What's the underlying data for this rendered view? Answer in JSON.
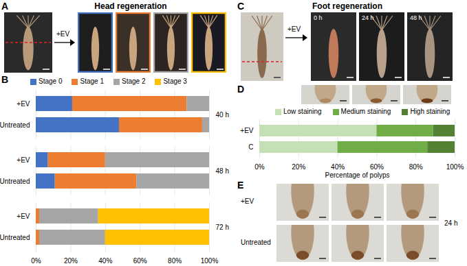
{
  "panels": {
    "A": {
      "label": "A",
      "title": "Head regeneration",
      "treatment": "+EV"
    },
    "C": {
      "label": "C",
      "title": "Foot regeneration",
      "treatment": "+EV",
      "time_labels": [
        "0 h",
        "24 h",
        "48 h"
      ]
    },
    "E": {
      "label": "E",
      "rows": [
        "+EV",
        "Untreated"
      ],
      "time": "24 h"
    }
  },
  "chart_data": [
    {
      "panel_label": "B",
      "type": "bar",
      "orientation": "horizontal",
      "stacked": true,
      "categories": [
        "+EV",
        "Untreated",
        "+EV",
        "Untreated",
        "+EV",
        "Untreated"
      ],
      "groups": [
        "40 h",
        "40 h",
        "48 h",
        "48 h",
        "72 h",
        "72 h"
      ],
      "series": [
        {
          "name": "Stage 0",
          "color": "#4472c4",
          "values": [
            21,
            48,
            7,
            11,
            0,
            0
          ]
        },
        {
          "name": "Stage 1",
          "color": "#ed7d31",
          "values": [
            66,
            48,
            33,
            47,
            2,
            2
          ]
        },
        {
          "name": "Stage 2",
          "color": "#a5a5a5",
          "values": [
            13,
            4,
            60,
            42,
            34,
            38
          ]
        },
        {
          "name": "Stage 3",
          "color": "#ffc000",
          "values": [
            0,
            0,
            0,
            0,
            64,
            60
          ]
        }
      ],
      "xlim": [
        0,
        100
      ],
      "xticks": [
        {
          "value": 0,
          "label": "0%"
        },
        {
          "value": 20,
          "label": "20%"
        },
        {
          "value": 40,
          "label": "40%"
        },
        {
          "value": 60,
          "label": "60%"
        },
        {
          "value": 80,
          "label": "80%"
        },
        {
          "value": 100,
          "label": "100%"
        }
      ],
      "grid": true,
      "legend": "top"
    },
    {
      "panel_label": "D",
      "type": "bar",
      "orientation": "horizontal",
      "stacked": true,
      "categories": [
        "+EV",
        "C"
      ],
      "series": [
        {
          "name": "Low staining",
          "color": "#c5e0b4",
          "values": [
            60,
            40
          ]
        },
        {
          "name": "Medium staining",
          "color": "#70ad47",
          "values": [
            29,
            46
          ]
        },
        {
          "name": "High staining",
          "color": "#548235",
          "values": [
            11,
            14
          ]
        }
      ],
      "xlim": [
        0,
        100
      ],
      "xticks": [
        {
          "value": 0,
          "label": "0%"
        },
        {
          "value": 20,
          "label": "20%"
        },
        {
          "value": 40,
          "label": "40%"
        },
        {
          "value": 60,
          "label": "60%"
        },
        {
          "value": 80,
          "label": "80%"
        },
        {
          "value": 100,
          "label": "100%"
        }
      ],
      "xlabel": "Percentage of polyps",
      "grid": true,
      "legend": "top"
    }
  ]
}
